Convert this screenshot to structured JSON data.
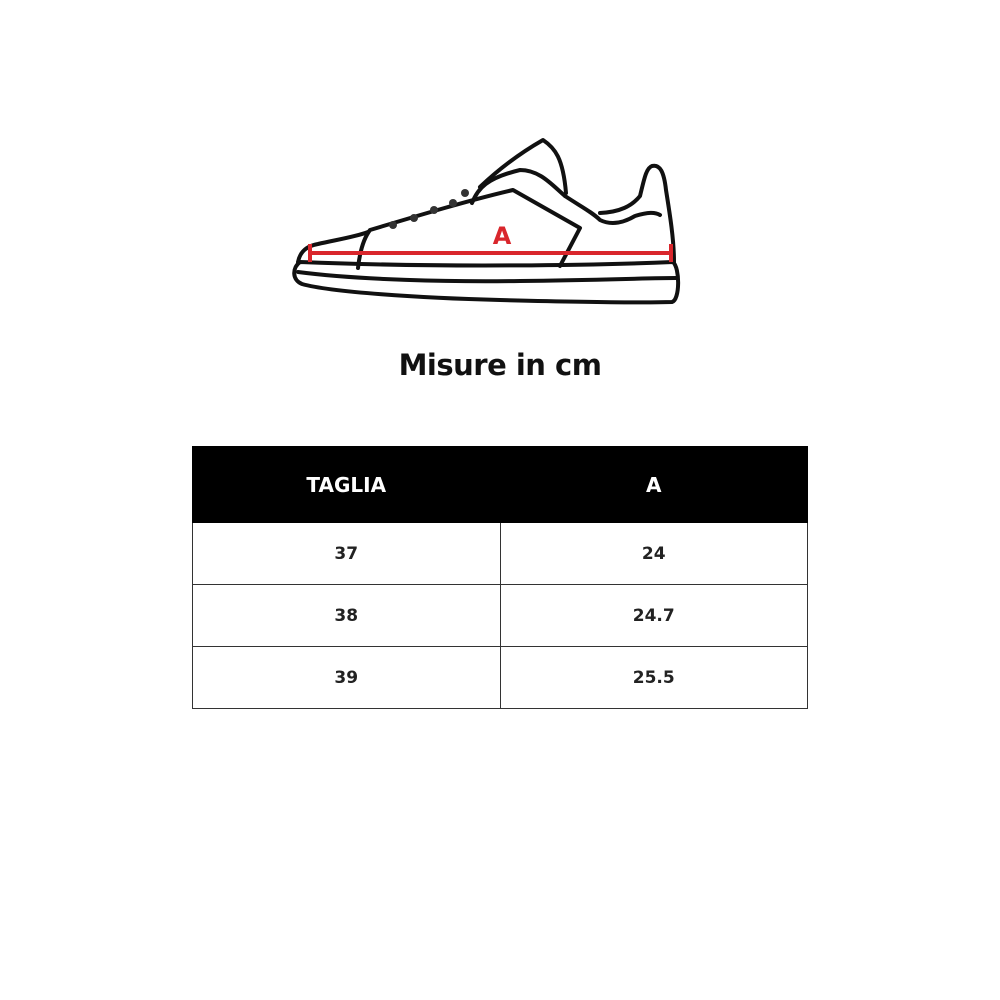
{
  "illustration": {
    "icon": "sneaker-outline-icon",
    "measure_label": "A",
    "measure_color": "#d9262c"
  },
  "title": "Misure in cm",
  "table": {
    "headers": [
      "TAGLIA",
      "A"
    ],
    "rows": [
      [
        "37",
        "24"
      ],
      [
        "38",
        "24.7"
      ],
      [
        "39",
        "25.5"
      ]
    ]
  }
}
